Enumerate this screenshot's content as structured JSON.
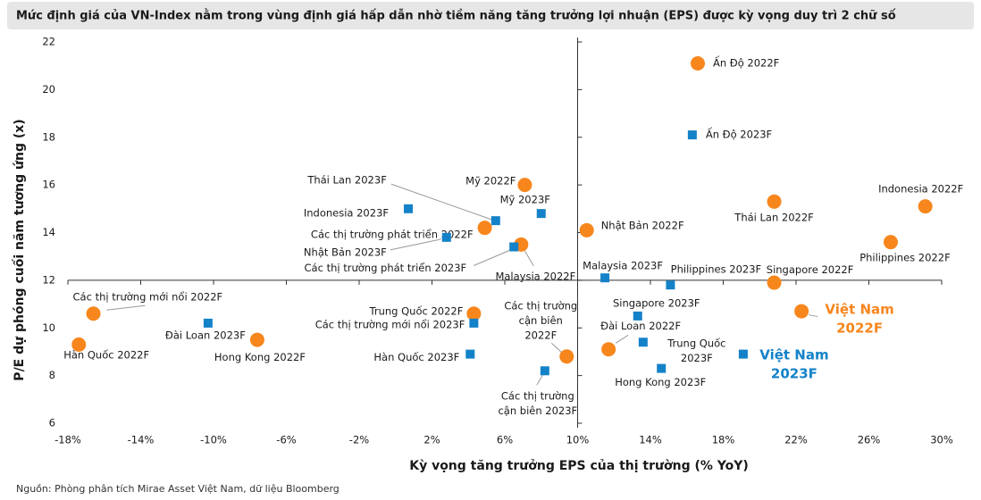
{
  "chart_data": {
    "type": "scatter",
    "title": "Mức định giá của VN-Index nằm trong vùng định giá hấp dẫn nhờ tiềm năng tăng trưởng lợi nhuận (EPS) được kỳ vọng duy trì 2 chữ số",
    "x_label": "Kỳ vọng tăng trưởng EPS của thị trường (% YoY)",
    "y_label": "P/E dự phóng cuối năm tương ứng (x)",
    "source": "Nguồn: Phòng phân tích Mirae Asset Việt Nam, dữ liệu Bloomberg",
    "xlim": [
      -18,
      30
    ],
    "xticks": [
      {
        "value": -18,
        "label": "-18%"
      },
      {
        "value": -14,
        "label": "-14%"
      },
      {
        "value": -10,
        "label": "-10%"
      },
      {
        "value": -6,
        "label": "-6%"
      },
      {
        "value": -2,
        "label": "-2%"
      },
      {
        "value": 2,
        "label": "2%"
      },
      {
        "value": 6,
        "label": "6%"
      },
      {
        "value": 10,
        "label": "10%"
      },
      {
        "value": 14,
        "label": "14%"
      },
      {
        "value": 18,
        "label": "18%"
      },
      {
        "value": 22,
        "label": "22%"
      },
      {
        "value": 26,
        "label": "26%"
      },
      {
        "value": 30,
        "label": "30%"
      }
    ],
    "ylim": [
      6,
      22
    ],
    "yticks": [
      6,
      8,
      10,
      12,
      14,
      16,
      18,
      20,
      22
    ],
    "axis_cross": {
      "x": 10,
      "y": 12
    },
    "series": [
      {
        "color": "#f7861d",
        "marker": "circle",
        "labels": [
          "Ấn Độ 2022F",
          "Mỹ 2022F",
          "Các thị trường phát triển 2022F",
          "Malaysia 2022F",
          "Nhật Bản 2022F",
          "Thái Lan 2022F",
          "Indonesia 2022F",
          "Philippines 2022F",
          "Singapore 2022F",
          "Việt Nam 2022F",
          "Các thị trường mới nổi 2022F",
          "Hàn Quốc 2022F",
          "Hong Kong 2022F",
          "Trung Quốc 2022F",
          "Các thị trường cận biên 2022F",
          "Đài Loan 2022F"
        ],
        "x": [
          16.6,
          7.1,
          4.9,
          6.9,
          10.5,
          20.8,
          29.1,
          27.2,
          20.8,
          22.3,
          -16.6,
          -17.4,
          -7.6,
          4.3,
          9.4,
          11.7
        ],
        "values": [
          21.1,
          16.0,
          14.2,
          13.5,
          14.1,
          15.3,
          15.1,
          13.6,
          11.9,
          10.7,
          10.6,
          9.3,
          9.5,
          10.6,
          8.8,
          9.1
        ]
      },
      {
        "color": "#1482c8",
        "marker": "square",
        "labels": [
          "Ấn Độ 2023F",
          "Mỹ 2023F",
          "Thái Lan 2023F",
          "Indonesia 2023F",
          "Các thị trường phát triển 2023F",
          "Nhật Bản 2023F",
          "Malaysia 2023F",
          "Philippines 2023F",
          "Singapore 2023F",
          "Việt Nam 2023F",
          "Đài Loan 2023F",
          "Các thị trường mới nổi 2023F",
          "Hàn Quốc 2023F",
          "Trung Quốc 2023F",
          "Hong Kong 2023F",
          "Các thị trường cận biên 2023F"
        ],
        "x": [
          16.3,
          8.0,
          5.5,
          0.7,
          6.5,
          2.8,
          11.5,
          15.1,
          13.3,
          19.1,
          -10.3,
          4.3,
          4.1,
          13.6,
          14.6,
          8.2
        ],
        "values": [
          18.1,
          14.8,
          14.5,
          15.0,
          13.4,
          13.8,
          12.1,
          11.8,
          10.5,
          8.9,
          10.2,
          10.2,
          8.9,
          9.4,
          8.3,
          8.2
        ]
      }
    ]
  }
}
